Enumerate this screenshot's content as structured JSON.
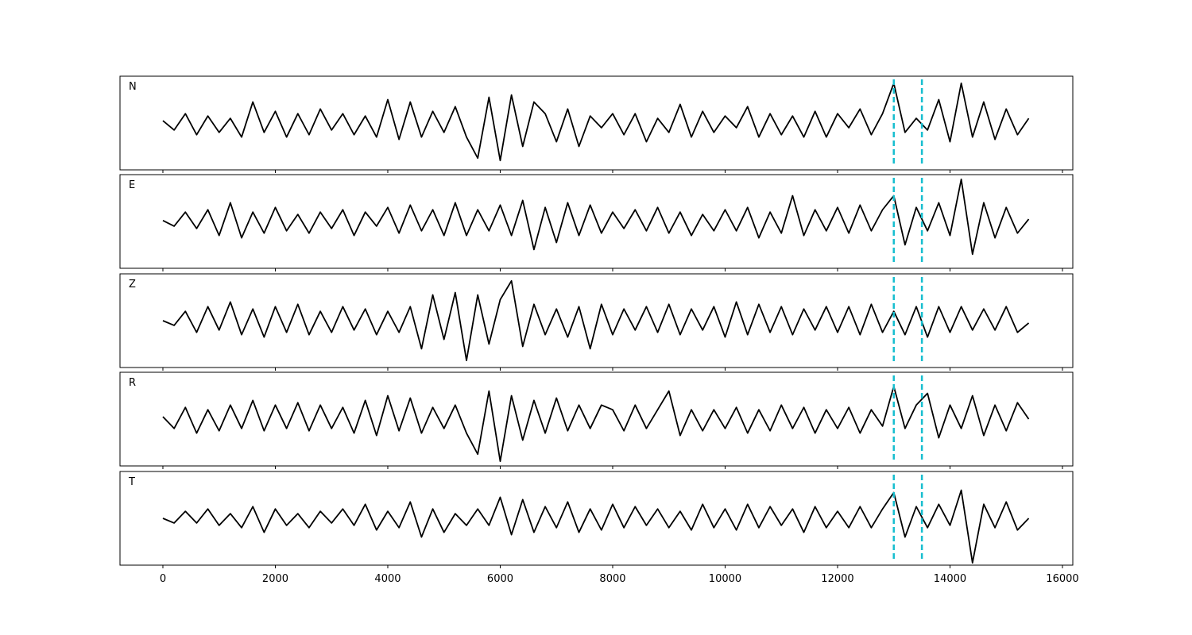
{
  "chart_data": {
    "type": "line",
    "layout": "stacked",
    "x": [
      0,
      200,
      400,
      600,
      800,
      1000,
      1200,
      1400,
      1600,
      1800,
      2000,
      2200,
      2400,
      2600,
      2800,
      3000,
      3200,
      3400,
      3600,
      3800,
      4000,
      4200,
      4400,
      4600,
      4800,
      5000,
      5200,
      5400,
      5600,
      5800,
      6000,
      6200,
      6400,
      6600,
      6800,
      7000,
      7200,
      7400,
      7600,
      7800,
      8000,
      8200,
      8400,
      8600,
      8800,
      9000,
      9200,
      9400,
      9600,
      9800,
      10000,
      10200,
      10400,
      10600,
      10800,
      11000,
      11200,
      11400,
      11600,
      11800,
      12000,
      12200,
      12400,
      12600,
      12800,
      13000,
      13200,
      13400,
      13600,
      13800,
      14000,
      14200,
      14400,
      14600,
      14800,
      15000,
      15200,
      15400
    ],
    "xlim": [
      -763,
      16184
    ],
    "xticks": [
      0,
      2000,
      4000,
      6000,
      8000,
      10000,
      12000,
      14000,
      16000
    ],
    "ylim": [
      -1,
      1
    ],
    "vlines": [
      13000,
      13500
    ],
    "vline_color": "#17becf",
    "series": [
      {
        "name": "N",
        "color": "#000000",
        "values": [
          0.05,
          -0.15,
          0.2,
          -0.25,
          0.15,
          -0.2,
          0.1,
          -0.3,
          0.45,
          -0.2,
          0.25,
          -0.3,
          0.2,
          -0.25,
          0.3,
          -0.15,
          0.2,
          -0.25,
          0.15,
          -0.3,
          0.5,
          -0.35,
          0.45,
          -0.3,
          0.25,
          -0.2,
          0.35,
          -0.3,
          -0.75,
          0.55,
          -0.8,
          0.6,
          -0.5,
          0.45,
          0.2,
          -0.4,
          0.3,
          -0.5,
          0.15,
          -0.1,
          0.2,
          -0.25,
          0.2,
          -0.4,
          0.1,
          -0.2,
          0.4,
          -0.3,
          0.25,
          -0.2,
          0.15,
          -0.1,
          0.35,
          -0.3,
          0.2,
          -0.25,
          0.15,
          -0.3,
          0.25,
          -0.3,
          0.2,
          -0.1,
          0.3,
          -0.25,
          0.2,
          0.85,
          -0.2,
          0.1,
          -0.15,
          0.5,
          -0.4,
          0.85,
          -0.3,
          0.45,
          -0.35,
          0.3,
          -0.25,
          0.1
        ]
      },
      {
        "name": "E",
        "color": "#000000",
        "values": [
          0.02,
          -0.1,
          0.2,
          -0.15,
          0.25,
          -0.3,
          0.4,
          -0.35,
          0.2,
          -0.25,
          0.3,
          -0.2,
          0.15,
          -0.25,
          0.2,
          -0.15,
          0.25,
          -0.3,
          0.2,
          -0.1,
          0.3,
          -0.25,
          0.35,
          -0.2,
          0.25,
          -0.3,
          0.4,
          -0.3,
          0.25,
          -0.2,
          0.35,
          -0.3,
          0.45,
          -0.6,
          0.3,
          -0.45,
          0.4,
          -0.3,
          0.35,
          -0.25,
          0.2,
          -0.15,
          0.25,
          -0.2,
          0.3,
          -0.25,
          0.2,
          -0.3,
          0.15,
          -0.2,
          0.25,
          -0.2,
          0.3,
          -0.35,
          0.2,
          -0.25,
          0.55,
          -0.3,
          0.25,
          -0.2,
          0.3,
          -0.25,
          0.35,
          -0.2,
          0.25,
          0.55,
          -0.5,
          0.3,
          -0.2,
          0.4,
          -0.3,
          0.9,
          -0.7,
          0.4,
          -0.35,
          0.3,
          -0.25,
          0.05
        ]
      },
      {
        "name": "Z",
        "color": "#000000",
        "values": [
          0.0,
          -0.1,
          0.2,
          -0.25,
          0.3,
          -0.2,
          0.4,
          -0.3,
          0.25,
          -0.35,
          0.3,
          -0.25,
          0.35,
          -0.3,
          0.2,
          -0.25,
          0.3,
          -0.2,
          0.25,
          -0.3,
          0.2,
          -0.25,
          0.3,
          -0.6,
          0.55,
          -0.4,
          0.6,
          -0.85,
          0.55,
          -0.5,
          0.45,
          0.85,
          -0.55,
          0.35,
          -0.3,
          0.25,
          -0.35,
          0.3,
          -0.6,
          0.35,
          -0.3,
          0.25,
          -0.2,
          0.3,
          -0.25,
          0.35,
          -0.3,
          0.25,
          -0.2,
          0.3,
          -0.35,
          0.4,
          -0.3,
          0.35,
          -0.25,
          0.3,
          -0.3,
          0.25,
          -0.2,
          0.3,
          -0.25,
          0.3,
          -0.3,
          0.35,
          -0.25,
          0.2,
          -0.3,
          0.3,
          -0.35,
          0.3,
          -0.25,
          0.3,
          -0.2,
          0.25,
          -0.2,
          0.3,
          -0.25,
          -0.05
        ]
      },
      {
        "name": "R",
        "color": "#000000",
        "values": [
          0.05,
          -0.2,
          0.25,
          -0.3,
          0.2,
          -0.25,
          0.3,
          -0.2,
          0.4,
          -0.25,
          0.3,
          -0.2,
          0.35,
          -0.25,
          0.3,
          -0.2,
          0.25,
          -0.3,
          0.4,
          -0.35,
          0.5,
          -0.25,
          0.45,
          -0.3,
          0.25,
          -0.2,
          0.3,
          -0.3,
          -0.75,
          0.6,
          -0.9,
          0.5,
          -0.45,
          0.4,
          -0.3,
          0.45,
          -0.25,
          0.3,
          -0.2,
          0.3,
          0.2,
          -0.25,
          0.3,
          -0.2,
          0.2,
          0.6,
          -0.35,
          0.2,
          -0.25,
          0.2,
          -0.2,
          0.25,
          -0.3,
          0.2,
          -0.25,
          0.3,
          -0.2,
          0.25,
          -0.3,
          0.2,
          -0.2,
          0.25,
          -0.3,
          0.2,
          -0.15,
          0.7,
          -0.2,
          0.3,
          0.55,
          -0.4,
          0.3,
          -0.2,
          0.5,
          -0.35,
          0.3,
          -0.25,
          0.35,
          0.0
        ]
      },
      {
        "name": "T",
        "color": "#000000",
        "values": [
          0.0,
          -0.1,
          0.15,
          -0.1,
          0.2,
          -0.15,
          0.1,
          -0.2,
          0.25,
          -0.3,
          0.2,
          -0.15,
          0.1,
          -0.2,
          0.15,
          -0.1,
          0.2,
          -0.15,
          0.3,
          -0.25,
          0.15,
          -0.2,
          0.35,
          -0.4,
          0.2,
          -0.3,
          0.1,
          -0.15,
          0.2,
          -0.15,
          0.45,
          -0.35,
          0.4,
          -0.3,
          0.25,
          -0.2,
          0.35,
          -0.3,
          0.2,
          -0.25,
          0.3,
          -0.2,
          0.25,
          -0.15,
          0.2,
          -0.2,
          0.15,
          -0.25,
          0.3,
          -0.2,
          0.2,
          -0.25,
          0.3,
          -0.2,
          0.25,
          -0.15,
          0.2,
          -0.3,
          0.25,
          -0.2,
          0.15,
          -0.2,
          0.25,
          -0.2,
          0.2,
          0.55,
          -0.4,
          0.25,
          -0.2,
          0.3,
          -0.15,
          0.6,
          -0.95,
          0.3,
          -0.2,
          0.35,
          -0.25,
          0.0
        ]
      }
    ]
  }
}
